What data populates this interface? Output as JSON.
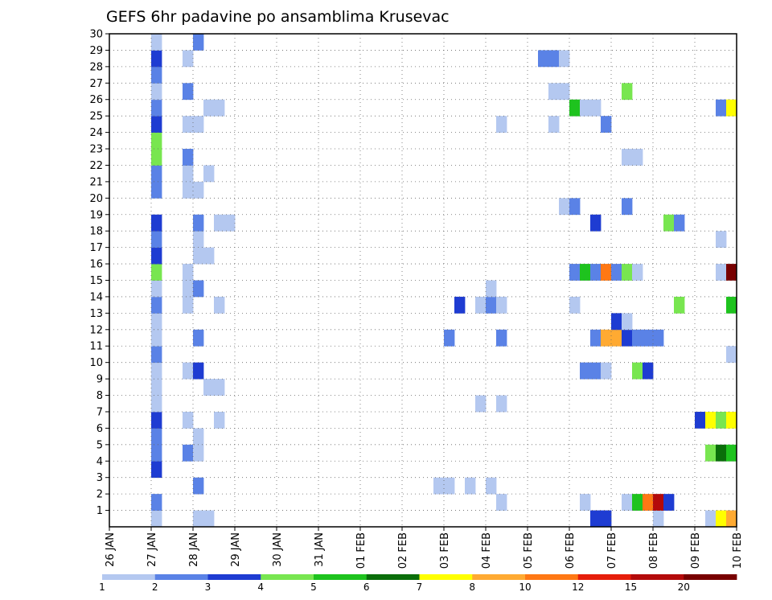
{
  "chart_data": {
    "type": "heatmap",
    "title": "GEFS 6hr padavine po ansamblima Krusevac",
    "xlabel": "",
    "ylabel": "",
    "x_start": "26 JAN",
    "x_steps": 60,
    "x_step_hours": 6,
    "x_tick_labels": [
      "26 JAN",
      "27 JAN",
      "28 JAN",
      "29 JAN",
      "30 JAN",
      "31 JAN",
      "01 FEB",
      "02 FEB",
      "03 FEB",
      "04 FEB",
      "05 FEB",
      "06 FEB",
      "07 FEB",
      "08 FEB",
      "09 FEB",
      "10 FEB"
    ],
    "y_tick_labels": [
      "1",
      "2",
      "3",
      "4",
      "5",
      "6",
      "7",
      "8",
      "9",
      "10",
      "11",
      "12",
      "13",
      "14",
      "15",
      "16",
      "17",
      "18",
      "19",
      "20",
      "21",
      "22",
      "23",
      "24",
      "25",
      "26",
      "27",
      "28",
      "29",
      "30"
    ],
    "ylim": [
      0,
      30
    ],
    "grid": true,
    "colorbar": {
      "boundaries": [
        "1",
        "2",
        "3",
        "4",
        "5",
        "6",
        "7",
        "8",
        "10",
        "12",
        "15",
        "20"
      ],
      "colors": [
        "#b4c8f0",
        "#5a82e6",
        "#1e3cd2",
        "#78e650",
        "#1ec31e",
        "#0a6e0a",
        "#ffff00",
        "#ffaa32",
        "#ff7814",
        "#e61e0a",
        "#b40a0a",
        "#780000"
      ]
    },
    "cells": [
      {
        "member": 0,
        "time": 4,
        "cls": 1
      },
      {
        "member": 0,
        "time": 8,
        "cls": 1
      },
      {
        "member": 0,
        "time": 9,
        "cls": 1
      },
      {
        "member": 0,
        "time": 46,
        "cls": 3
      },
      {
        "member": 0,
        "time": 47,
        "cls": 3
      },
      {
        "member": 0,
        "time": 52,
        "cls": 1
      },
      {
        "member": 0,
        "time": 57,
        "cls": 1
      },
      {
        "member": 0,
        "time": 58,
        "cls": 7
      },
      {
        "member": 0,
        "time": 59,
        "cls": 8
      },
      {
        "member": 1,
        "time": 4,
        "cls": 2
      },
      {
        "member": 1,
        "time": 37,
        "cls": 1
      },
      {
        "member": 1,
        "time": 45,
        "cls": 1
      },
      {
        "member": 1,
        "time": 49,
        "cls": 1
      },
      {
        "member": 1,
        "time": 50,
        "cls": 5
      },
      {
        "member": 1,
        "time": 51,
        "cls": 9
      },
      {
        "member": 1,
        "time": 52,
        "cls": 11
      },
      {
        "member": 1,
        "time": 53,
        "cls": 3
      },
      {
        "member": 2,
        "time": 8,
        "cls": 2
      },
      {
        "member": 2,
        "time": 31,
        "cls": 1
      },
      {
        "member": 2,
        "time": 32,
        "cls": 1
      },
      {
        "member": 2,
        "time": 34,
        "cls": 1
      },
      {
        "member": 2,
        "time": 36,
        "cls": 1
      },
      {
        "member": 3,
        "time": 4,
        "cls": 3
      },
      {
        "member": 4,
        "time": 4,
        "cls": 2
      },
      {
        "member": 4,
        "time": 7,
        "cls": 2
      },
      {
        "member": 4,
        "time": 8,
        "cls": 1
      },
      {
        "member": 4,
        "time": 57,
        "cls": 4
      },
      {
        "member": 4,
        "time": 58,
        "cls": 6
      },
      {
        "member": 4,
        "time": 59,
        "cls": 5
      },
      {
        "member": 5,
        "time": 4,
        "cls": 2
      },
      {
        "member": 5,
        "time": 8,
        "cls": 1
      },
      {
        "member": 6,
        "time": 4,
        "cls": 3
      },
      {
        "member": 6,
        "time": 7,
        "cls": 1
      },
      {
        "member": 6,
        "time": 10,
        "cls": 1
      },
      {
        "member": 6,
        "time": 56,
        "cls": 3
      },
      {
        "member": 6,
        "time": 57,
        "cls": 7
      },
      {
        "member": 6,
        "time": 58,
        "cls": 4
      },
      {
        "member": 6,
        "time": 59,
        "cls": 7
      },
      {
        "member": 7,
        "time": 4,
        "cls": 1
      },
      {
        "member": 7,
        "time": 35,
        "cls": 1
      },
      {
        "member": 7,
        "time": 37,
        "cls": 1
      },
      {
        "member": 8,
        "time": 4,
        "cls": 1
      },
      {
        "member": 8,
        "time": 9,
        "cls": 1
      },
      {
        "member": 8,
        "time": 10,
        "cls": 1
      },
      {
        "member": 9,
        "time": 4,
        "cls": 1
      },
      {
        "member": 9,
        "time": 7,
        "cls": 1
      },
      {
        "member": 9,
        "time": 8,
        "cls": 3
      },
      {
        "member": 9,
        "time": 45,
        "cls": 2
      },
      {
        "member": 9,
        "time": 46,
        "cls": 2
      },
      {
        "member": 9,
        "time": 47,
        "cls": 1
      },
      {
        "member": 9,
        "time": 50,
        "cls": 4
      },
      {
        "member": 9,
        "time": 51,
        "cls": 3
      },
      {
        "member": 10,
        "time": 4,
        "cls": 2
      },
      {
        "member": 10,
        "time": 59,
        "cls": 1
      },
      {
        "member": 11,
        "time": 4,
        "cls": 1
      },
      {
        "member": 11,
        "time": 8,
        "cls": 2
      },
      {
        "member": 11,
        "time": 32,
        "cls": 2
      },
      {
        "member": 11,
        "time": 37,
        "cls": 2
      },
      {
        "member": 11,
        "time": 46,
        "cls": 2
      },
      {
        "member": 11,
        "time": 47,
        "cls": 8
      },
      {
        "member": 11,
        "time": 48,
        "cls": 8
      },
      {
        "member": 11,
        "time": 49,
        "cls": 3
      },
      {
        "member": 11,
        "time": 50,
        "cls": 2
      },
      {
        "member": 11,
        "time": 51,
        "cls": 2
      },
      {
        "member": 11,
        "time": 52,
        "cls": 2
      },
      {
        "member": 12,
        "time": 4,
        "cls": 1
      },
      {
        "member": 12,
        "time": 48,
        "cls": 3
      },
      {
        "member": 12,
        "time": 49,
        "cls": 1
      },
      {
        "member": 13,
        "time": 4,
        "cls": 2
      },
      {
        "member": 13,
        "time": 7,
        "cls": 1
      },
      {
        "member": 13,
        "time": 10,
        "cls": 1
      },
      {
        "member": 13,
        "time": 33,
        "cls": 3
      },
      {
        "member": 13,
        "time": 35,
        "cls": 1
      },
      {
        "member": 13,
        "time": 36,
        "cls": 2
      },
      {
        "member": 13,
        "time": 37,
        "cls": 1
      },
      {
        "member": 13,
        "time": 44,
        "cls": 1
      },
      {
        "member": 13,
        "time": 54,
        "cls": 4
      },
      {
        "member": 13,
        "time": 59,
        "cls": 5
      },
      {
        "member": 14,
        "time": 4,
        "cls": 1
      },
      {
        "member": 14,
        "time": 7,
        "cls": 1
      },
      {
        "member": 14,
        "time": 8,
        "cls": 2
      },
      {
        "member": 14,
        "time": 36,
        "cls": 1
      },
      {
        "member": 15,
        "time": 4,
        "cls": 4
      },
      {
        "member": 15,
        "time": 7,
        "cls": 1
      },
      {
        "member": 15,
        "time": 44,
        "cls": 2
      },
      {
        "member": 15,
        "time": 45,
        "cls": 5
      },
      {
        "member": 15,
        "time": 46,
        "cls": 2
      },
      {
        "member": 15,
        "time": 47,
        "cls": 9
      },
      {
        "member": 15,
        "time": 48,
        "cls": 2
      },
      {
        "member": 15,
        "time": 49,
        "cls": 4
      },
      {
        "member": 15,
        "time": 50,
        "cls": 1
      },
      {
        "member": 15,
        "time": 58,
        "cls": 1
      },
      {
        "member": 15,
        "time": 59,
        "cls": 12
      },
      {
        "member": 16,
        "time": 4,
        "cls": 3
      },
      {
        "member": 16,
        "time": 8,
        "cls": 1
      },
      {
        "member": 16,
        "time": 9,
        "cls": 1
      },
      {
        "member": 17,
        "time": 4,
        "cls": 2
      },
      {
        "member": 17,
        "time": 8,
        "cls": 1
      },
      {
        "member": 17,
        "time": 58,
        "cls": 1
      },
      {
        "member": 18,
        "time": 4,
        "cls": 3
      },
      {
        "member": 18,
        "time": 8,
        "cls": 2
      },
      {
        "member": 18,
        "time": 10,
        "cls": 1
      },
      {
        "member": 18,
        "time": 11,
        "cls": 1
      },
      {
        "member": 18,
        "time": 46,
        "cls": 3
      },
      {
        "member": 18,
        "time": 53,
        "cls": 4
      },
      {
        "member": 18,
        "time": 54,
        "cls": 2
      },
      {
        "member": 19,
        "time": 43,
        "cls": 1
      },
      {
        "member": 19,
        "time": 44,
        "cls": 2
      },
      {
        "member": 19,
        "time": 49,
        "cls": 2
      },
      {
        "member": 20,
        "time": 4,
        "cls": 2
      },
      {
        "member": 20,
        "time": 7,
        "cls": 1
      },
      {
        "member": 20,
        "time": 8,
        "cls": 1
      },
      {
        "member": 21,
        "time": 4,
        "cls": 2
      },
      {
        "member": 21,
        "time": 7,
        "cls": 1
      },
      {
        "member": 21,
        "time": 9,
        "cls": 1
      },
      {
        "member": 22,
        "time": 4,
        "cls": 4
      },
      {
        "member": 22,
        "time": 7,
        "cls": 2
      },
      {
        "member": 22,
        "time": 49,
        "cls": 1
      },
      {
        "member": 22,
        "time": 50,
        "cls": 1
      },
      {
        "member": 23,
        "time": 4,
        "cls": 4
      },
      {
        "member": 24,
        "time": 4,
        "cls": 3
      },
      {
        "member": 24,
        "time": 7,
        "cls": 1
      },
      {
        "member": 24,
        "time": 8,
        "cls": 1
      },
      {
        "member": 24,
        "time": 37,
        "cls": 1
      },
      {
        "member": 24,
        "time": 42,
        "cls": 1
      },
      {
        "member": 24,
        "time": 47,
        "cls": 2
      },
      {
        "member": 25,
        "time": 4,
        "cls": 2
      },
      {
        "member": 25,
        "time": 9,
        "cls": 1
      },
      {
        "member": 25,
        "time": 10,
        "cls": 1
      },
      {
        "member": 25,
        "time": 44,
        "cls": 5
      },
      {
        "member": 25,
        "time": 45,
        "cls": 1
      },
      {
        "member": 25,
        "time": 46,
        "cls": 1
      },
      {
        "member": 25,
        "time": 58,
        "cls": 2
      },
      {
        "member": 25,
        "time": 59,
        "cls": 7
      },
      {
        "member": 26,
        "time": 4,
        "cls": 1
      },
      {
        "member": 26,
        "time": 7,
        "cls": 2
      },
      {
        "member": 26,
        "time": 42,
        "cls": 1
      },
      {
        "member": 26,
        "time": 43,
        "cls": 1
      },
      {
        "member": 26,
        "time": 49,
        "cls": 4
      },
      {
        "member": 27,
        "time": 4,
        "cls": 2
      },
      {
        "member": 28,
        "time": 4,
        "cls": 3
      },
      {
        "member": 28,
        "time": 7,
        "cls": 1
      },
      {
        "member": 28,
        "time": 41,
        "cls": 2
      },
      {
        "member": 28,
        "time": 42,
        "cls": 2
      },
      {
        "member": 28,
        "time": 43,
        "cls": 1
      },
      {
        "member": 29,
        "time": 4,
        "cls": 1
      },
      {
        "member": 29,
        "time": 8,
        "cls": 2
      }
    ]
  }
}
